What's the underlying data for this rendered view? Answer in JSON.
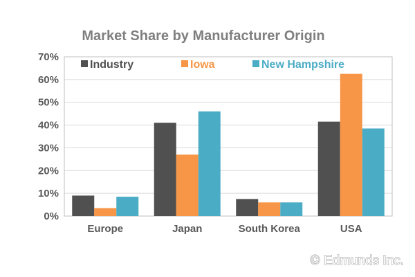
{
  "chart_data": {
    "type": "bar",
    "title": "Market Share by Manufacturer Origin",
    "categories": [
      "Europe",
      "Japan",
      "South Korea",
      "USA"
    ],
    "series": [
      {
        "name": "Industry",
        "color": "#505050",
        "values": [
          9,
          41,
          7.5,
          41.5
        ]
      },
      {
        "name": "Iowa",
        "color": "#f79646",
        "values": [
          3.5,
          27,
          6,
          62.5
        ]
      },
      {
        "name": "New Hampshire",
        "color": "#4bacc6",
        "values": [
          8.5,
          46,
          6,
          38.5
        ]
      }
    ],
    "ylim": [
      0,
      70
    ],
    "yticks": [
      "0%",
      "10%",
      "20%",
      "30%",
      "40%",
      "50%",
      "60%",
      "70%"
    ],
    "xlabel": "",
    "ylabel": "",
    "grid": true,
    "legend_position": "top"
  },
  "credit": "© Edmunds Inc."
}
